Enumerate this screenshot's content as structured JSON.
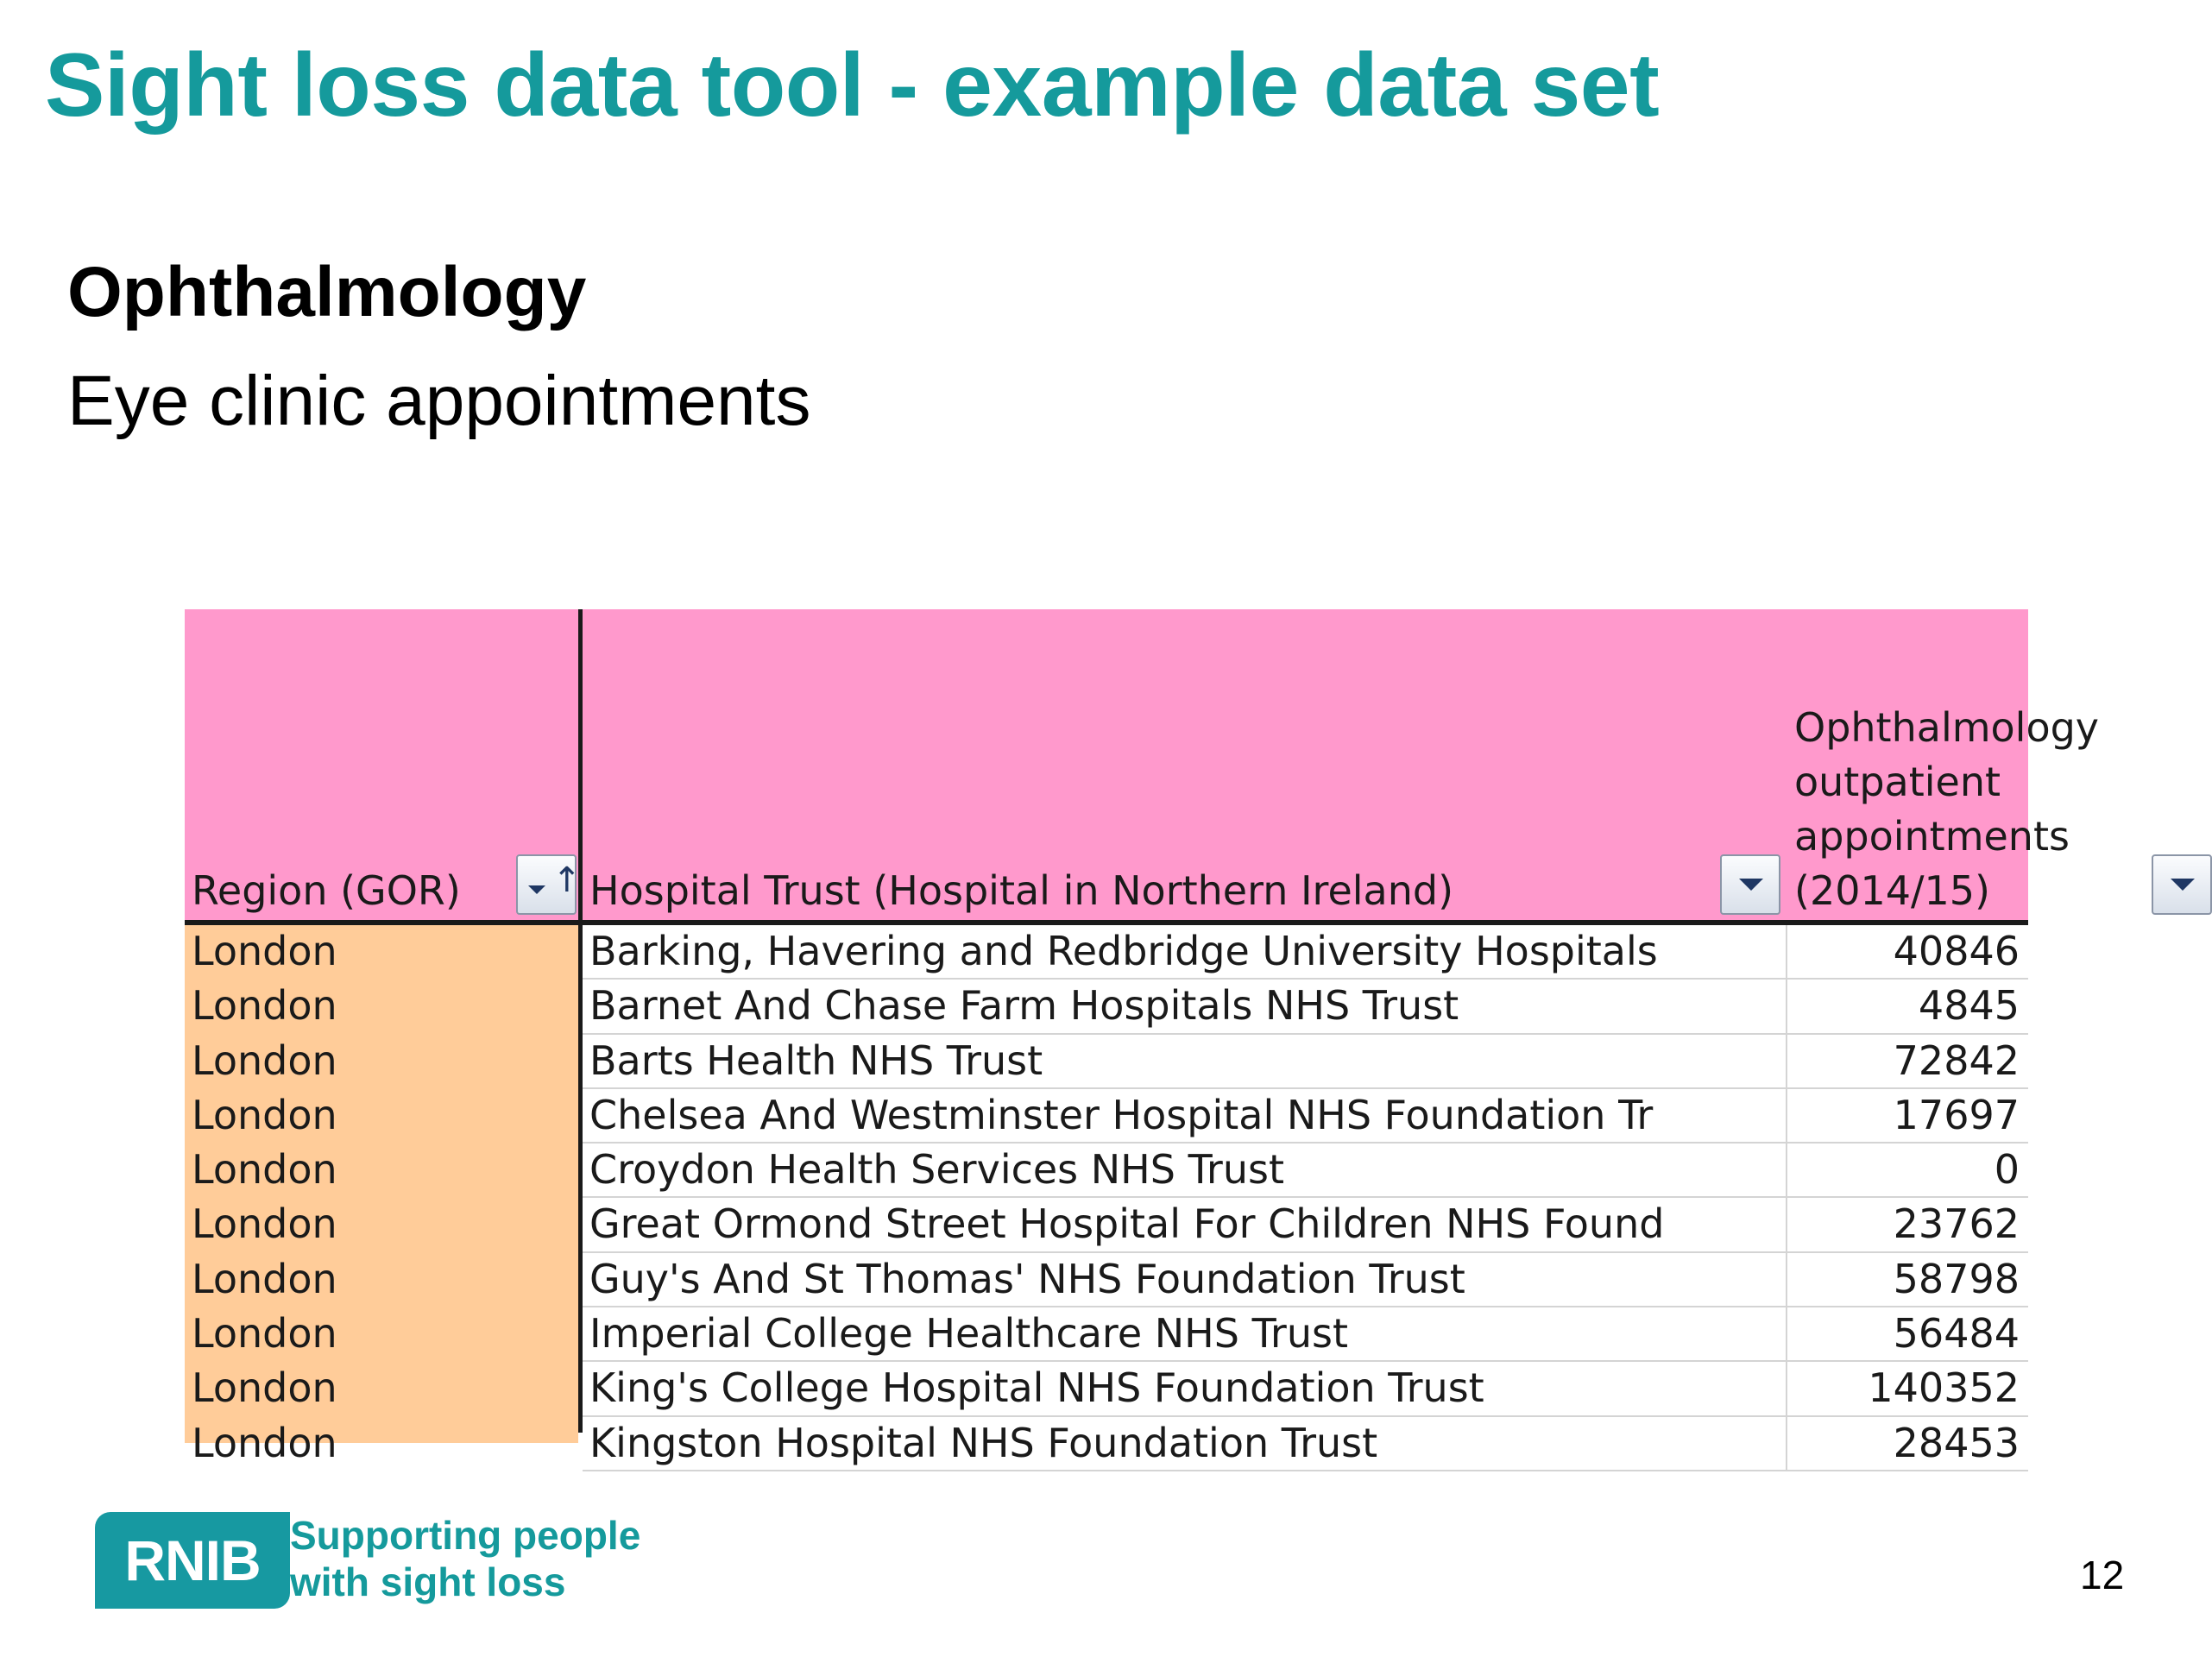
{
  "slide": {
    "title": "Sight loss data tool - example data set",
    "subtitle": "Ophthalmology",
    "subsubtitle": "Eye clinic appointments",
    "page_number": "12",
    "accent_color": "#159a9c"
  },
  "table": {
    "header_color": "#ff99cc",
    "region_color": "#ffcc99",
    "columns": {
      "region": "Region (GOR)",
      "trust": "Hospital Trust (Hospital in Northern Ireland)",
      "value": "Ophthalmology outpatient appointments (2014/15)"
    },
    "filter_icons": {
      "region": "sorted-filter-icon",
      "trust": "dropdown-filter-icon",
      "value": "dropdown-filter-icon"
    },
    "sort_arrow": "↑",
    "rows": [
      {
        "region": "London",
        "trust": "Barking, Havering and Redbridge University Hospitals",
        "value": "40846"
      },
      {
        "region": "London",
        "trust": "Barnet And Chase Farm Hospitals NHS Trust",
        "value": "4845"
      },
      {
        "region": "London",
        "trust": "Barts Health NHS Trust",
        "value": "72842"
      },
      {
        "region": "London",
        "trust": "Chelsea And Westminster Hospital NHS Foundation Tr",
        "value": "17697"
      },
      {
        "region": "London",
        "trust": "Croydon Health Services NHS Trust",
        "value": "0"
      },
      {
        "region": "London",
        "trust": "Great Ormond Street Hospital For Children NHS Found",
        "value": "23762"
      },
      {
        "region": "London",
        "trust": "Guy's And St Thomas' NHS Foundation Trust",
        "value": "58798"
      },
      {
        "region": "London",
        "trust": "Imperial College Healthcare NHS Trust",
        "value": "56484"
      },
      {
        "region": "London",
        "trust": "King's College Hospital NHS Foundation Trust",
        "value": "140352"
      },
      {
        "region": "London",
        "trust": "Kingston Hospital NHS Foundation Trust",
        "value": "28453"
      }
    ]
  },
  "footer": {
    "logo_text": "RNIB",
    "tagline_line1": "Supporting people",
    "tagline_line2": "with sight loss"
  }
}
